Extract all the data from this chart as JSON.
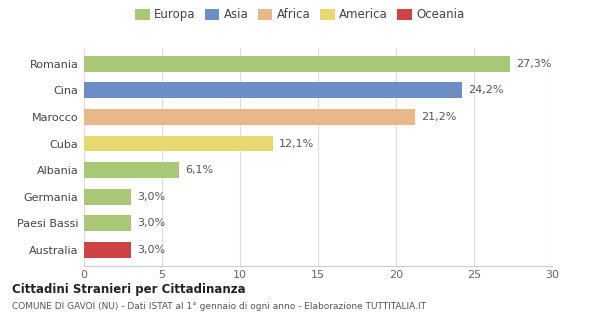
{
  "categories": [
    "Romania",
    "Cina",
    "Marocco",
    "Cuba",
    "Albania",
    "Germania",
    "Paesi Bassi",
    "Australia"
  ],
  "values": [
    27.3,
    24.2,
    21.2,
    12.1,
    6.1,
    3.0,
    3.0,
    3.0
  ],
  "labels": [
    "27,3%",
    "24,2%",
    "21,2%",
    "12,1%",
    "6,1%",
    "3,0%",
    "3,0%",
    "3,0%"
  ],
  "colors": [
    "#a8c878",
    "#6b8fc5",
    "#e8b888",
    "#e8d870",
    "#a8c878",
    "#a8c878",
    "#a8c878",
    "#cc4444"
  ],
  "legend": [
    {
      "label": "Europa",
      "color": "#a8c878"
    },
    {
      "label": "Asia",
      "color": "#6b8fc5"
    },
    {
      "label": "Africa",
      "color": "#e8b888"
    },
    {
      "label": "America",
      "color": "#e8d870"
    },
    {
      "label": "Oceania",
      "color": "#cc4444"
    }
  ],
  "xlim": [
    0,
    30
  ],
  "xticks": [
    0,
    5,
    10,
    15,
    20,
    25,
    30
  ],
  "title_bold": "Cittadini Stranieri per Cittadinanza",
  "subtitle": "COMUNE DI GAVOI (NU) - Dati ISTAT al 1° gennaio di ogni anno - Elaborazione TUTTITALIA.IT",
  "background_color": "#ffffff",
  "bar_height": 0.6,
  "label_fontsize": 8,
  "tick_fontsize": 8,
  "legend_fontsize": 8.5
}
